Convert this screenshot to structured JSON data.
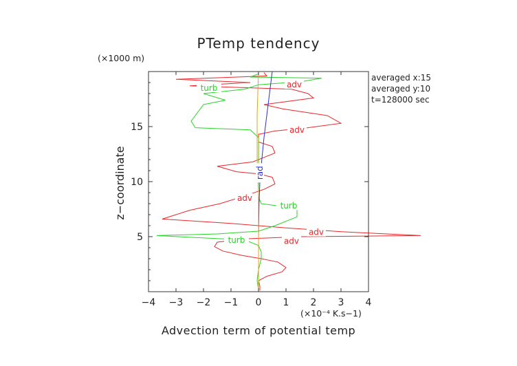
{
  "chart_data": {
    "type": "line",
    "title": "PTemp tendency",
    "xlabel": "Advection term of potential temp",
    "x_unit": "(×10⁻⁴ K.s−1)",
    "ylabel": "z−coordinate",
    "y_unit": "(×1000 m)",
    "xlim": [
      -4,
      4
    ],
    "ylim": [
      0,
      20
    ],
    "xticks": [
      -4,
      -3,
      -2,
      -1,
      0,
      1,
      2,
      3,
      4
    ],
    "yticks": [
      5,
      10,
      15
    ],
    "annotations": [
      "averaged  x:15",
      "averaged  y:10",
      "t=128000 sec"
    ],
    "colors": {
      "adv": "#e8262b",
      "turb": "#28d428",
      "rad": "#2a2ad8",
      "orange": "#f0a000",
      "axis": "#333333"
    },
    "series": [
      {
        "name": "adv",
        "color": "#e8262b",
        "points": [
          [
            0.05,
            0.1
          ],
          [
            0.05,
            0.5
          ],
          [
            0.0,
            1.0
          ],
          [
            0.3,
            1.4
          ],
          [
            0.85,
            1.8
          ],
          [
            1.0,
            2.2
          ],
          [
            0.7,
            2.7
          ],
          [
            0.1,
            3.0
          ],
          [
            -0.6,
            3.3
          ],
          [
            -1.3,
            3.7
          ],
          [
            -1.6,
            4.1
          ],
          [
            -1.5,
            4.5
          ],
          [
            -0.5,
            4.8
          ],
          [
            1.5,
            5.0
          ],
          [
            5.9,
            5.1
          ],
          [
            3.0,
            5.45
          ],
          [
            1.0,
            5.8
          ],
          [
            -1.0,
            6.2
          ],
          [
            -3.5,
            6.6
          ],
          [
            -2.5,
            7.4
          ],
          [
            -1.4,
            8.0
          ],
          [
            -0.5,
            8.7
          ],
          [
            0.2,
            9.3
          ],
          [
            0.6,
            9.8
          ],
          [
            0.5,
            10.4
          ],
          [
            0.0,
            10.7
          ],
          [
            -0.8,
            10.9
          ],
          [
            -1.5,
            11.4
          ],
          [
            -0.2,
            11.8
          ],
          [
            0.6,
            12.6
          ],
          [
            0.5,
            13.2
          ],
          [
            0.0,
            13.6
          ],
          [
            0.0,
            14.0
          ],
          [
            0.0,
            14.3
          ],
          [
            0.6,
            14.6
          ],
          [
            1.8,
            14.9
          ],
          [
            3.0,
            15.3
          ],
          [
            2.5,
            16.0
          ],
          [
            0.9,
            16.6
          ],
          [
            0.2,
            17.0
          ],
          [
            2.0,
            17.6
          ],
          [
            1.8,
            18.0
          ],
          [
            1.2,
            18.4
          ],
          [
            -2.5,
            18.7
          ],
          [
            -0.3,
            19.0
          ],
          [
            -3.0,
            19.3
          ],
          [
            0.3,
            19.6
          ],
          [
            0.2,
            19.9
          ]
        ]
      },
      {
        "name": "turb",
        "color": "#28d428",
        "points": [
          [
            0.0,
            0.2
          ],
          [
            -0.05,
            1.0
          ],
          [
            0.0,
            2.0
          ],
          [
            0.1,
            3.0
          ],
          [
            0.1,
            3.6
          ],
          [
            0.0,
            4.2
          ],
          [
            -0.5,
            4.7
          ],
          [
            -3.7,
            5.1
          ],
          [
            -1.5,
            5.25
          ],
          [
            0.0,
            5.5
          ],
          [
            0.6,
            6.0
          ],
          [
            1.4,
            6.8
          ],
          [
            1.4,
            7.5
          ],
          [
            0.7,
            7.8
          ],
          [
            0.1,
            8.0
          ],
          [
            0.0,
            8.6
          ],
          [
            0.0,
            10.0
          ],
          [
            0.0,
            12.0
          ],
          [
            0.0,
            14.0
          ],
          [
            -0.3,
            14.7
          ],
          [
            -2.3,
            14.9
          ],
          [
            -2.45,
            15.5
          ],
          [
            -2.0,
            17.0
          ],
          [
            -1.2,
            17.4
          ],
          [
            -2.0,
            18.0
          ],
          [
            -0.5,
            18.4
          ],
          [
            0.0,
            18.8
          ],
          [
            1.6,
            19.1
          ],
          [
            2.3,
            19.4
          ],
          [
            -0.3,
            19.5
          ],
          [
            0.0,
            19.8
          ]
        ]
      },
      {
        "name": "rad",
        "color": "#2a2ad8",
        "points": [
          [
            0.0,
            0.0
          ],
          [
            0.0,
            5.0
          ],
          [
            0.02,
            8.0
          ],
          [
            0.05,
            10.0
          ],
          [
            0.12,
            12.0
          ],
          [
            0.2,
            14.0
          ],
          [
            0.3,
            16.0
          ],
          [
            0.4,
            18.0
          ],
          [
            0.5,
            20.0
          ]
        ]
      },
      {
        "name": "",
        "color": "#f0a000",
        "points": [
          [
            0.0,
            0.0
          ],
          [
            0.0,
            9.0
          ],
          [
            -0.05,
            12.0
          ],
          [
            -0.05,
            16.0
          ],
          [
            0.0,
            20.0
          ]
        ]
      }
    ],
    "line_labels": [
      {
        "text": "adv",
        "x": 1.3,
        "y": 18.8,
        "color": "#e8262b"
      },
      {
        "text": "adv",
        "x": 1.4,
        "y": 14.7,
        "color": "#e8262b"
      },
      {
        "text": "adv",
        "x": -0.5,
        "y": 8.5,
        "color": "#e8262b"
      },
      {
        "text": "adv",
        "x": 2.1,
        "y": 5.4,
        "color": "#e8262b"
      },
      {
        "text": "adv",
        "x": 1.2,
        "y": 4.6,
        "color": "#e8262b"
      },
      {
        "text": "turb",
        "x": -1.8,
        "y": 18.5,
        "color": "#28d428"
      },
      {
        "text": "turb",
        "x": 1.1,
        "y": 7.8,
        "color": "#28d428"
      },
      {
        "text": "turb",
        "x": -0.8,
        "y": 4.7,
        "color": "#28d428"
      },
      {
        "text": "rad",
        "x": 0.05,
        "y": 10.8,
        "color": "#2a2ad8",
        "rotate": -90
      }
    ]
  }
}
